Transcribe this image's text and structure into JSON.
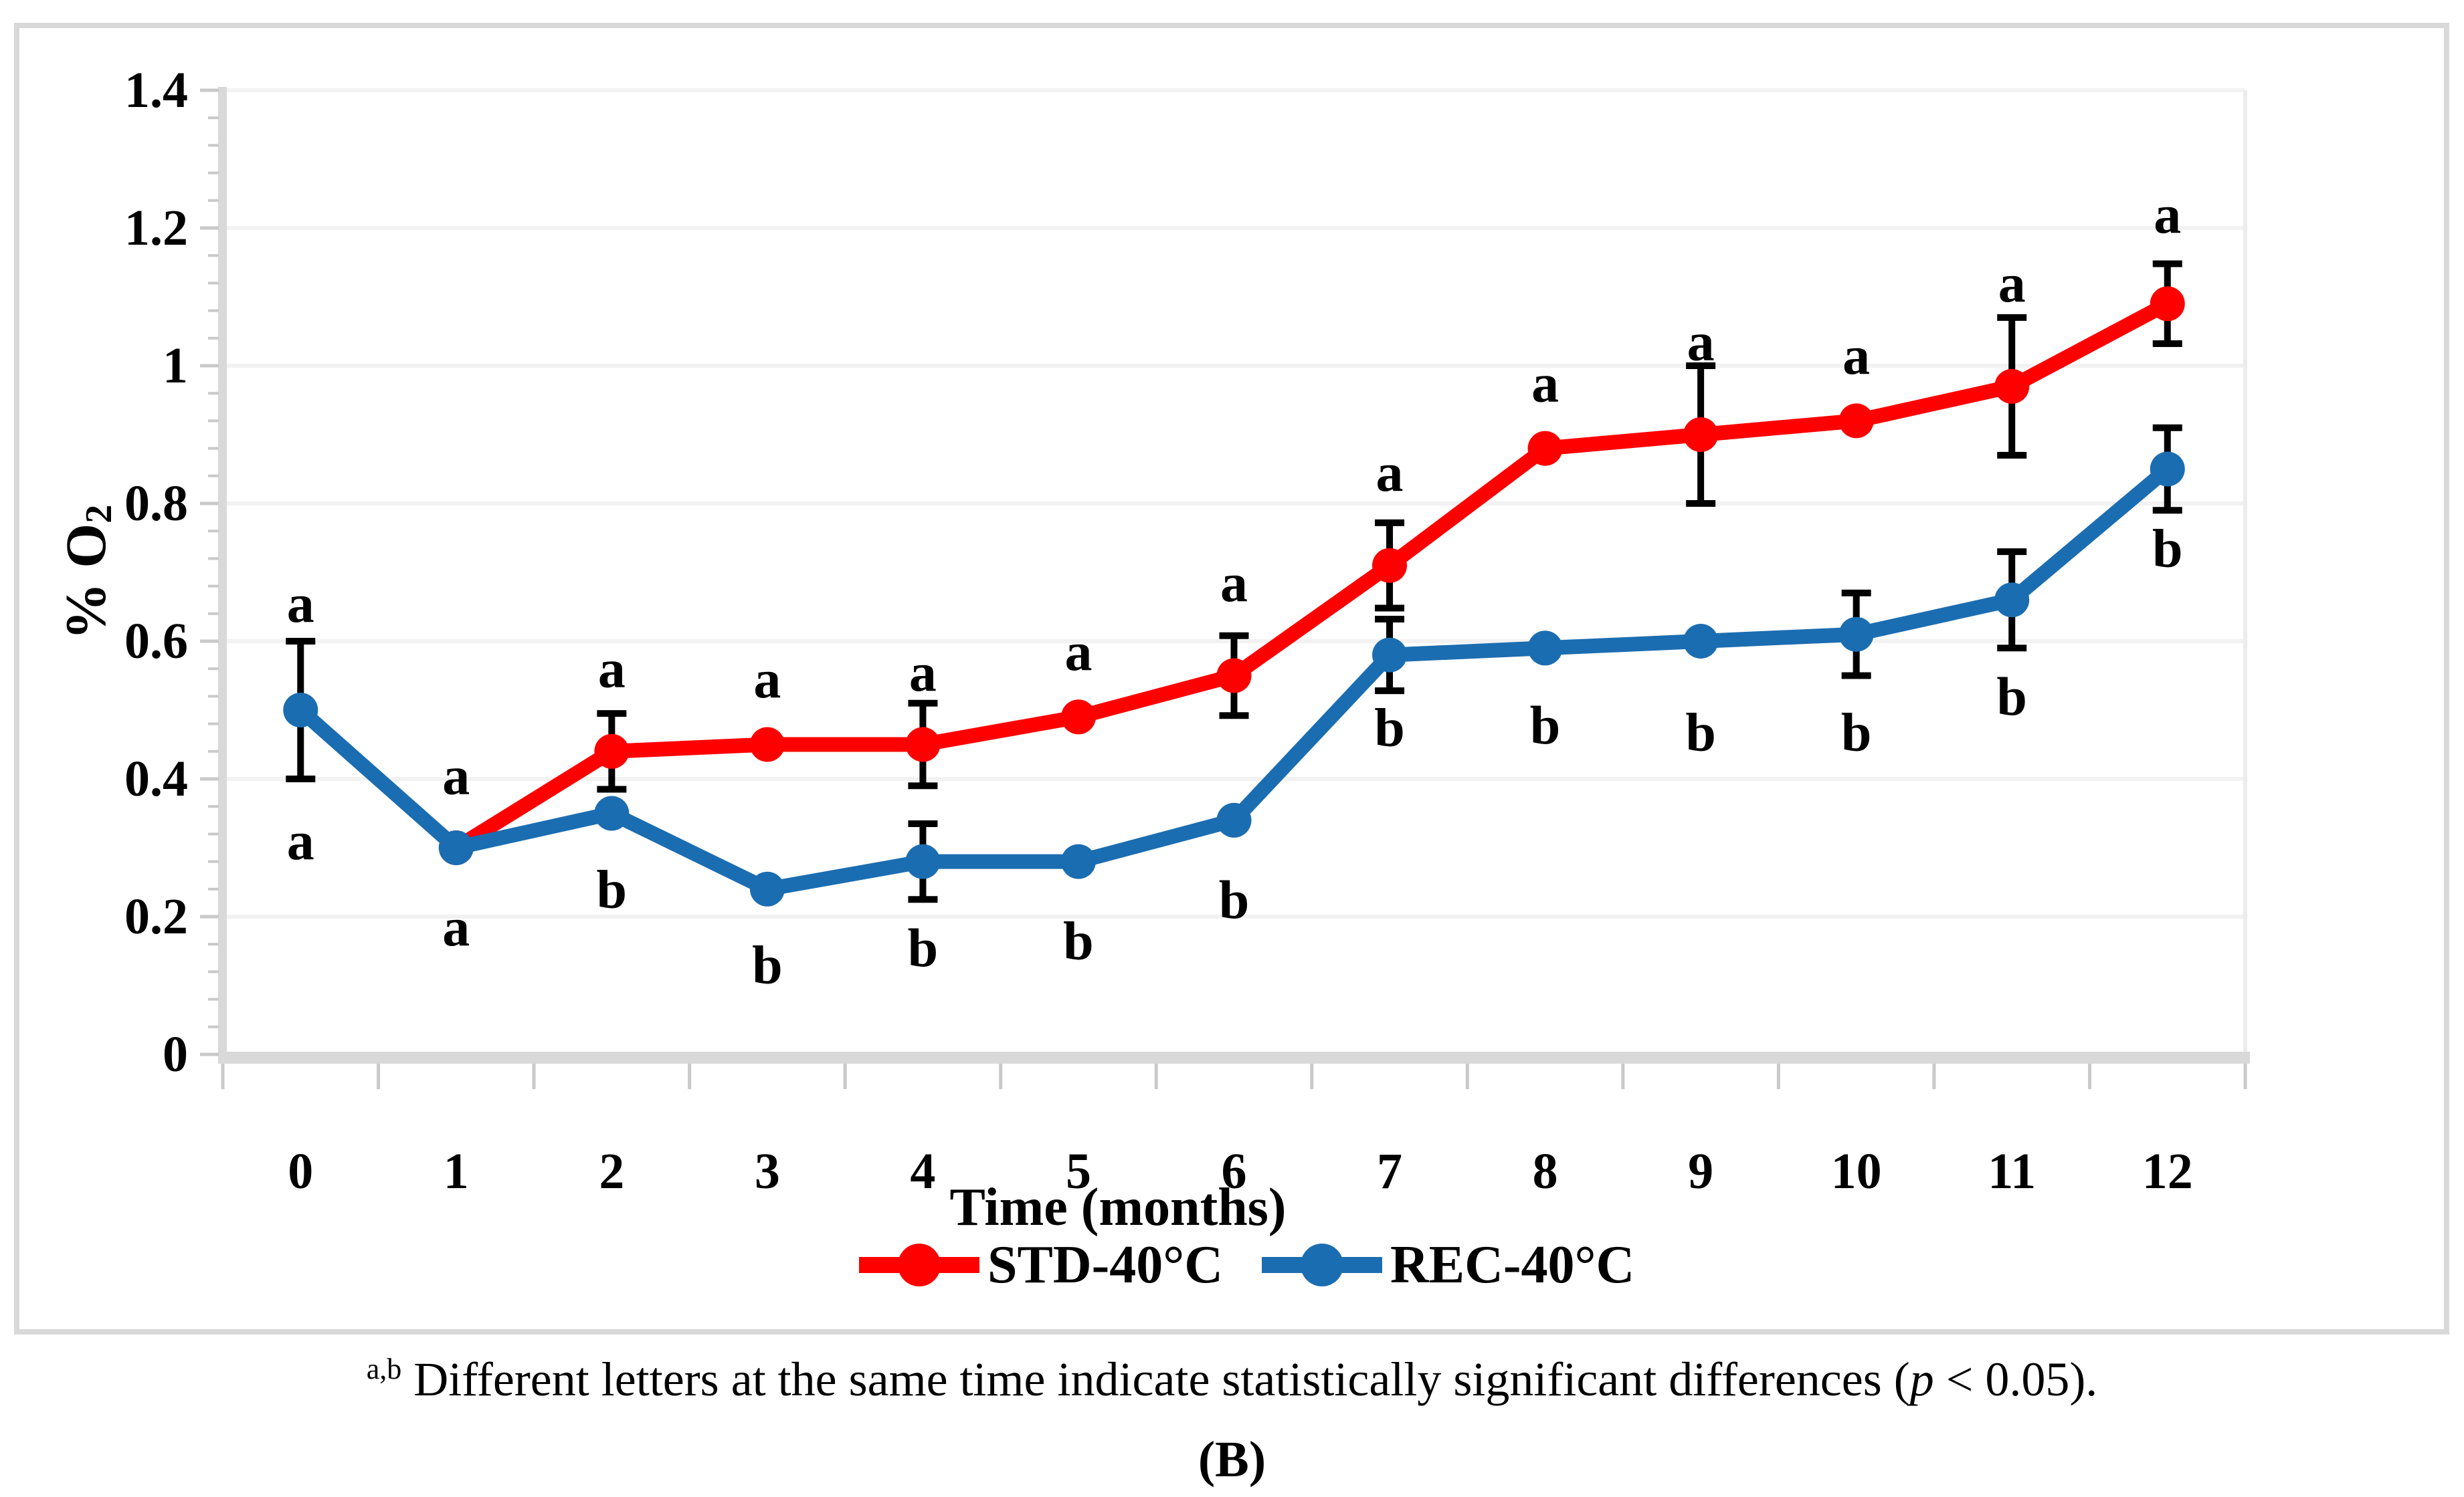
{
  "figure": {
    "panel_label": "(B)",
    "caption": {
      "superscript": "a,b",
      "text_before_p": " Different letters at the same time indicate statistically significant differences (",
      "p_symbol": "p",
      "text_after_p": " < 0.05)."
    }
  },
  "chart_data": {
    "type": "line",
    "x": [
      0,
      1,
      2,
      3,
      4,
      5,
      6,
      7,
      8,
      9,
      10,
      11,
      12
    ],
    "xlabel": "Time (months)",
    "ylabel": {
      "text": "% O",
      "sub": "2"
    },
    "ylim": [
      0,
      1.4
    ],
    "ytick_step": 0.2,
    "yticklabels": [
      "0",
      "0.2",
      "0.4",
      "0.6",
      "0.8",
      "1",
      "1.2",
      "1.4"
    ],
    "minor_ytick_step": 0.04,
    "grid": true,
    "legend_position": "bottom",
    "series": [
      {
        "name": "STD-40°C",
        "color": "#fe0000",
        "values": [
          null,
          0.3,
          0.44,
          0.45,
          0.45,
          0.49,
          0.55,
          0.71,
          0.88,
          0.9,
          0.92,
          0.97,
          1.09
        ],
        "errors": [
          null,
          null,
          0.055,
          null,
          0.06,
          null,
          0.058,
          0.062,
          null,
          0.1,
          null,
          0.1,
          0.058
        ]
      },
      {
        "name": "REC-40°C",
        "color": "#1b6db1",
        "values": [
          0.5,
          0.3,
          0.35,
          0.24,
          0.28,
          0.28,
          0.34,
          0.58,
          0.59,
          0.6,
          0.61,
          0.66,
          0.85
        ],
        "errors": [
          0.1,
          null,
          null,
          null,
          0.055,
          null,
          null,
          0.052,
          null,
          null,
          0.06,
          0.07,
          0.06
        ]
      }
    ],
    "annotations": [
      {
        "m": 0,
        "t": "a",
        "y": 0.655
      },
      {
        "m": 0,
        "t": "a",
        "y": 0.31
      },
      {
        "m": 1,
        "t": "a",
        "y": 0.405
      },
      {
        "m": 1,
        "t": "a",
        "y": 0.185
      },
      {
        "m": 2,
        "t": "a",
        "y": 0.56
      },
      {
        "m": 2,
        "t": "b",
        "y": 0.24
      },
      {
        "m": 3,
        "t": "a",
        "y": 0.545
      },
      {
        "m": 3,
        "t": "b",
        "y": 0.13
      },
      {
        "m": 4,
        "t": "a",
        "y": 0.555
      },
      {
        "m": 4,
        "t": "b",
        "y": 0.155
      },
      {
        "m": 5,
        "t": "a",
        "y": 0.585
      },
      {
        "m": 5,
        "t": "b",
        "y": 0.165
      },
      {
        "m": 6,
        "t": "a",
        "y": 0.685
      },
      {
        "m": 6,
        "t": "b",
        "y": 0.225
      },
      {
        "m": 7,
        "t": "a",
        "y": 0.845
      },
      {
        "m": 7,
        "t": "b",
        "y": 0.475
      },
      {
        "m": 8,
        "t": "a",
        "y": 0.975
      },
      {
        "m": 8,
        "t": "b",
        "y": 0.478
      },
      {
        "m": 9,
        "t": "a",
        "y": 1.035
      },
      {
        "m": 9,
        "t": "b",
        "y": 0.468
      },
      {
        "m": 10,
        "t": "a",
        "y": 1.015
      },
      {
        "m": 10,
        "t": "b",
        "y": 0.468
      },
      {
        "m": 11,
        "t": "a",
        "y": 1.12
      },
      {
        "m": 11,
        "t": "b",
        "y": 0.52
      },
      {
        "m": 12,
        "t": "a",
        "y": 1.22
      },
      {
        "m": 12,
        "t": "b",
        "y": 0.735
      }
    ],
    "colors": {
      "gridline": "#f2f2f2",
      "axis_line": "#d9d9d9",
      "tick": "#c9c9c9",
      "plot_right_border": "#ececec",
      "outer_border": "#d9d9d9",
      "error_bar": "#000000",
      "text": "#000000"
    }
  }
}
